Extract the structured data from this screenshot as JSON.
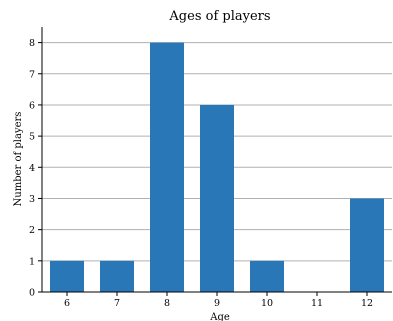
{
  "chart_data": {
    "type": "bar",
    "title": "Ages of players",
    "xlabel": "Age",
    "ylabel": "Number of players",
    "categories": [
      "6",
      "7",
      "8",
      "9",
      "10",
      "11",
      "12"
    ],
    "values": [
      1,
      1,
      8,
      6,
      1,
      0,
      3
    ],
    "ylim": [
      0,
      8.5
    ],
    "yticks": [
      0,
      1,
      2,
      3,
      4,
      5,
      6,
      7,
      8
    ],
    "grid": "horizontal",
    "bar_color": "#2a77b8",
    "grid_color": "#b0b0b0"
  }
}
